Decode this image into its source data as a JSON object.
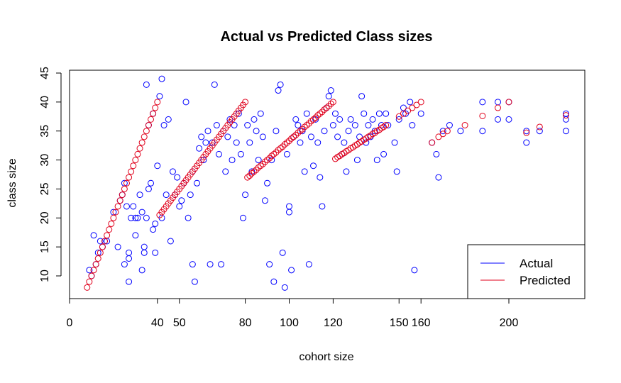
{
  "chart_data": {
    "type": "scatter",
    "title": "Actual vs Predicted Class sizes",
    "xlabel": "cohort size",
    "ylabel": "class size",
    "xlim": [
      0,
      235
    ],
    "ylim": [
      6,
      45
    ],
    "x_ticks": [
      0,
      40,
      50,
      80,
      100,
      120,
      150,
      160,
      200
    ],
    "y_ticks": [
      10,
      15,
      20,
      25,
      30,
      35,
      40,
      45
    ],
    "legend": {
      "position": "bottom-right",
      "entries": [
        {
          "label": "Actual",
          "color": "#0000ff"
        },
        {
          "label": "Predicted",
          "color": "#e0001b"
        }
      ]
    },
    "series": [
      {
        "name": "Actual",
        "color": "#0000ff",
        "marker": "open-circle",
        "points": [
          [
            9,
            11
          ],
          [
            10,
            10
          ],
          [
            11,
            17
          ],
          [
            12,
            12
          ],
          [
            13,
            14
          ],
          [
            14,
            16
          ],
          [
            15,
            15
          ],
          [
            16,
            16
          ],
          [
            17,
            16
          ],
          [
            20,
            21
          ],
          [
            22,
            15
          ],
          [
            23,
            23
          ],
          [
            24,
            24
          ],
          [
            25,
            26
          ],
          [
            25,
            12
          ],
          [
            26,
            22
          ],
          [
            27,
            14
          ],
          [
            27,
            13
          ],
          [
            27,
            9
          ],
          [
            28,
            20
          ],
          [
            29,
            22
          ],
          [
            30,
            20
          ],
          [
            30,
            17
          ],
          [
            31,
            20
          ],
          [
            32,
            24
          ],
          [
            33,
            21
          ],
          [
            33,
            11
          ],
          [
            34,
            15
          ],
          [
            34,
            14
          ],
          [
            35,
            43
          ],
          [
            35,
            20
          ],
          [
            36,
            36
          ],
          [
            36,
            25
          ],
          [
            37,
            26
          ],
          [
            38,
            38
          ],
          [
            38,
            18
          ],
          [
            39,
            14
          ],
          [
            39,
            19
          ],
          [
            40,
            29
          ],
          [
            41,
            41
          ],
          [
            42,
            44
          ],
          [
            42,
            20
          ],
          [
            43,
            36
          ],
          [
            44,
            24
          ],
          [
            45,
            37
          ],
          [
            46,
            16
          ],
          [
            47,
            28
          ],
          [
            48,
            24
          ],
          [
            49,
            27
          ],
          [
            50,
            22
          ],
          [
            51,
            23
          ],
          [
            52,
            26
          ],
          [
            53,
            40
          ],
          [
            54,
            20
          ],
          [
            55,
            24
          ],
          [
            56,
            28
          ],
          [
            56,
            12
          ],
          [
            57,
            9
          ],
          [
            58,
            26
          ],
          [
            59,
            32
          ],
          [
            60,
            34
          ],
          [
            61,
            30
          ],
          [
            62,
            33
          ],
          [
            63,
            35
          ],
          [
            64,
            12
          ],
          [
            65,
            33
          ],
          [
            66,
            43
          ],
          [
            67,
            36
          ],
          [
            68,
            31
          ],
          [
            69,
            12
          ],
          [
            70,
            35
          ],
          [
            71,
            28
          ],
          [
            72,
            34
          ],
          [
            73,
            37
          ],
          [
            74,
            30
          ],
          [
            75,
            36
          ],
          [
            76,
            33
          ],
          [
            77,
            38
          ],
          [
            78,
            31
          ],
          [
            79,
            20
          ],
          [
            80,
            24
          ],
          [
            81,
            36
          ],
          [
            82,
            33
          ],
          [
            83,
            28
          ],
          [
            84,
            37
          ],
          [
            85,
            35
          ],
          [
            86,
            30
          ],
          [
            87,
            38
          ],
          [
            88,
            34
          ],
          [
            89,
            23
          ],
          [
            90,
            26
          ],
          [
            91,
            12
          ],
          [
            92,
            30
          ],
          [
            93,
            9
          ],
          [
            94,
            35
          ],
          [
            95,
            42
          ],
          [
            96,
            43
          ],
          [
            97,
            14
          ],
          [
            98,
            8
          ],
          [
            99,
            31
          ],
          [
            100,
            22
          ],
          [
            100,
            21
          ],
          [
            101,
            11
          ],
          [
            102,
            34
          ],
          [
            103,
            37
          ],
          [
            104,
            36
          ],
          [
            105,
            33
          ],
          [
            106,
            35
          ],
          [
            107,
            28
          ],
          [
            108,
            38
          ],
          [
            109,
            12
          ],
          [
            110,
            34
          ],
          [
            111,
            29
          ],
          [
            112,
            37
          ],
          [
            113,
            33
          ],
          [
            114,
            27
          ],
          [
            115,
            22
          ],
          [
            116,
            35
          ],
          [
            117,
            39
          ],
          [
            118,
            41
          ],
          [
            119,
            42
          ],
          [
            120,
            36
          ],
          [
            121,
            38
          ],
          [
            122,
            34
          ],
          [
            123,
            37
          ],
          [
            124,
            31
          ],
          [
            125,
            33
          ],
          [
            126,
            28
          ],
          [
            127,
            35
          ],
          [
            128,
            37
          ],
          [
            130,
            36
          ],
          [
            131,
            30
          ],
          [
            132,
            34
          ],
          [
            133,
            41
          ],
          [
            134,
            38
          ],
          [
            135,
            33
          ],
          [
            136,
            36
          ],
          [
            137,
            34
          ],
          [
            138,
            37
          ],
          [
            139,
            35
          ],
          [
            140,
            30
          ],
          [
            141,
            38
          ],
          [
            142,
            36
          ],
          [
            143,
            31
          ],
          [
            144,
            38
          ],
          [
            145,
            36
          ],
          [
            148,
            33
          ],
          [
            149,
            28
          ],
          [
            150,
            37
          ],
          [
            152,
            39
          ],
          [
            153,
            38
          ],
          [
            155,
            40
          ],
          [
            156,
            36
          ],
          [
            157,
            11
          ],
          [
            160,
            38
          ],
          [
            165,
            33
          ],
          [
            167,
            31
          ],
          [
            168,
            27
          ],
          [
            170,
            35
          ],
          [
            173,
            36
          ],
          [
            178,
            35
          ],
          [
            188,
            40
          ],
          [
            188,
            35
          ],
          [
            195,
            40
          ],
          [
            195,
            37
          ],
          [
            200,
            40
          ],
          [
            200,
            37
          ],
          [
            208,
            35
          ],
          [
            208,
            33
          ],
          [
            214,
            35
          ],
          [
            226,
            38
          ],
          [
            226,
            37
          ],
          [
            226,
            35
          ]
        ]
      },
      {
        "name": "Predicted",
        "color": "#e0001b",
        "marker": "open-circle",
        "points": [
          [
            8,
            8
          ],
          [
            9,
            9
          ],
          [
            10,
            10
          ],
          [
            11,
            11
          ],
          [
            12,
            12
          ],
          [
            13,
            13
          ],
          [
            14,
            14
          ],
          [
            15,
            15
          ],
          [
            16,
            16
          ],
          [
            17,
            17
          ],
          [
            18,
            18
          ],
          [
            19,
            19
          ],
          [
            20,
            20
          ],
          [
            21,
            21
          ],
          [
            22,
            22
          ],
          [
            23,
            23
          ],
          [
            24,
            24
          ],
          [
            25,
            25
          ],
          [
            26,
            26
          ],
          [
            27,
            27
          ],
          [
            28,
            28
          ],
          [
            29,
            29
          ],
          [
            30,
            30
          ],
          [
            31,
            31
          ],
          [
            32,
            32
          ],
          [
            33,
            33
          ],
          [
            34,
            34
          ],
          [
            35,
            35
          ],
          [
            36,
            36
          ],
          [
            37,
            37
          ],
          [
            38,
            38
          ],
          [
            39,
            39
          ],
          [
            40,
            40
          ],
          [
            41,
            20.5
          ],
          [
            42,
            21
          ],
          [
            43,
            21.5
          ],
          [
            44,
            22
          ],
          [
            45,
            22.5
          ],
          [
            46,
            23
          ],
          [
            47,
            23.5
          ],
          [
            48,
            24
          ],
          [
            49,
            24.5
          ],
          [
            50,
            25
          ],
          [
            51,
            25.5
          ],
          [
            52,
            26
          ],
          [
            53,
            26.5
          ],
          [
            54,
            27
          ],
          [
            55,
            27.5
          ],
          [
            56,
            28
          ],
          [
            57,
            28.5
          ],
          [
            58,
            29
          ],
          [
            59,
            29.5
          ],
          [
            60,
            30
          ],
          [
            61,
            30.5
          ],
          [
            62,
            31
          ],
          [
            63,
            31.5
          ],
          [
            64,
            32
          ],
          [
            65,
            32.5
          ],
          [
            66,
            33
          ],
          [
            67,
            33.5
          ],
          [
            68,
            34
          ],
          [
            69,
            34.5
          ],
          [
            70,
            35
          ],
          [
            71,
            35.5
          ],
          [
            72,
            36
          ],
          [
            73,
            36.5
          ],
          [
            74,
            37
          ],
          [
            75,
            37.5
          ],
          [
            76,
            38
          ],
          [
            77,
            38.5
          ],
          [
            78,
            39
          ],
          [
            79,
            39.5
          ],
          [
            80,
            40
          ],
          [
            81,
            27
          ],
          [
            82,
            27.3
          ],
          [
            83,
            27.7
          ],
          [
            84,
            28
          ],
          [
            85,
            28.3
          ],
          [
            86,
            28.7
          ],
          [
            87,
            29
          ],
          [
            88,
            29.3
          ],
          [
            89,
            29.7
          ],
          [
            90,
            30
          ],
          [
            91,
            30.3
          ],
          [
            92,
            30.7
          ],
          [
            93,
            31
          ],
          [
            94,
            31.3
          ],
          [
            95,
            31.7
          ],
          [
            96,
            32
          ],
          [
            97,
            32.3
          ],
          [
            98,
            32.7
          ],
          [
            99,
            33
          ],
          [
            100,
            33.3
          ],
          [
            101,
            33.7
          ],
          [
            102,
            34
          ],
          [
            103,
            34.3
          ],
          [
            104,
            34.7
          ],
          [
            105,
            35
          ],
          [
            106,
            35.3
          ],
          [
            107,
            35.7
          ],
          [
            108,
            36
          ],
          [
            109,
            36.3
          ],
          [
            110,
            36.7
          ],
          [
            111,
            37
          ],
          [
            112,
            37.3
          ],
          [
            113,
            37.7
          ],
          [
            114,
            38
          ],
          [
            115,
            38.3
          ],
          [
            116,
            38.7
          ],
          [
            117,
            39
          ],
          [
            118,
            39.3
          ],
          [
            119,
            39.7
          ],
          [
            120,
            40
          ],
          [
            121,
            30.2
          ],
          [
            122,
            30.5
          ],
          [
            123,
            30.7
          ],
          [
            124,
            31
          ],
          [
            125,
            31.2
          ],
          [
            126,
            31.5
          ],
          [
            127,
            31.7
          ],
          [
            128,
            32
          ],
          [
            129,
            32.2
          ],
          [
            130,
            32.5
          ],
          [
            131,
            32.7
          ],
          [
            132,
            33
          ],
          [
            133,
            33.2
          ],
          [
            134,
            33.5
          ],
          [
            135,
            33.7
          ],
          [
            136,
            34
          ],
          [
            137,
            34.2
          ],
          [
            138,
            34.5
          ],
          [
            139,
            34.7
          ],
          [
            140,
            35
          ],
          [
            141,
            35.2
          ],
          [
            142,
            35.5
          ],
          [
            143,
            35.7
          ],
          [
            144,
            36
          ],
          [
            150,
            37.5
          ],
          [
            152,
            38
          ],
          [
            154,
            38.5
          ],
          [
            156,
            39
          ],
          [
            158,
            39.5
          ],
          [
            160,
            40
          ],
          [
            165,
            33
          ],
          [
            168,
            34
          ],
          [
            170,
            34.5
          ],
          [
            172,
            35
          ],
          [
            180,
            36
          ],
          [
            188,
            37.6
          ],
          [
            195,
            39
          ],
          [
            200,
            40
          ],
          [
            208,
            34.7
          ],
          [
            214,
            35.7
          ],
          [
            226,
            37.7
          ]
        ]
      }
    ]
  }
}
